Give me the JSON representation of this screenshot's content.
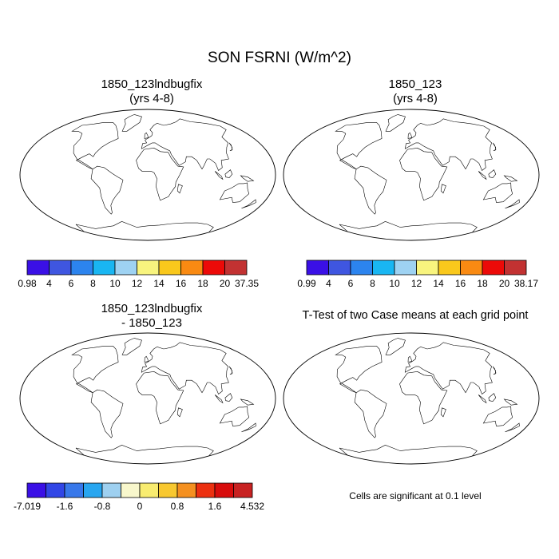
{
  "title": "SON FSRNI (W/m^2)",
  "colors": {
    "land_scale": [
      "#3a10e6",
      "#3f56e0",
      "#2c84ee",
      "#19b6f2",
      "#9ed2f2",
      "#f8f47e",
      "#f9c81c",
      "#f98a12",
      "#ec0a08",
      "#c23232"
    ],
    "diff_scale": [
      "#3a10e6",
      "#3146e6",
      "#3878ea",
      "#28a6f0",
      "#9ed0f0",
      "#f8f7cc",
      "#f8ec70",
      "#f8c830",
      "#f49020",
      "#ec3010",
      "#d80c0c",
      "#c82222"
    ],
    "ocean": "#ffffff",
    "coast": "#000000",
    "significant": "#dd0000"
  },
  "panels": [
    {
      "title_line1": "1850_123lndbugfix",
      "title_line2": "(yrs 4-8)",
      "field": "absolute",
      "colorbar_labels": [
        "0.98",
        "4",
        "6",
        "8",
        "10",
        "12",
        "14",
        "16",
        "18",
        "20",
        "37.35"
      ]
    },
    {
      "title_line1": "1850_123",
      "title_line2": "(yrs 4-8)",
      "field": "absolute",
      "colorbar_labels": [
        "0.99",
        "4",
        "6",
        "8",
        "10",
        "12",
        "14",
        "16",
        "18",
        "20",
        "38.17"
      ]
    },
    {
      "title_line1": "1850_123lndbugfix",
      "title_line2": "- 1850_123",
      "field": "difference",
      "colorbar_labels": [
        "-7.019",
        "-1.6",
        "-0.8",
        "0",
        "0.8",
        "1.6",
        "4.532"
      ]
    },
    {
      "title_line1": "T-Test of two Case means at each grid point",
      "title_line2": "",
      "field": "significance",
      "footnote": "Cells are significant at 0.1 level"
    }
  ]
}
